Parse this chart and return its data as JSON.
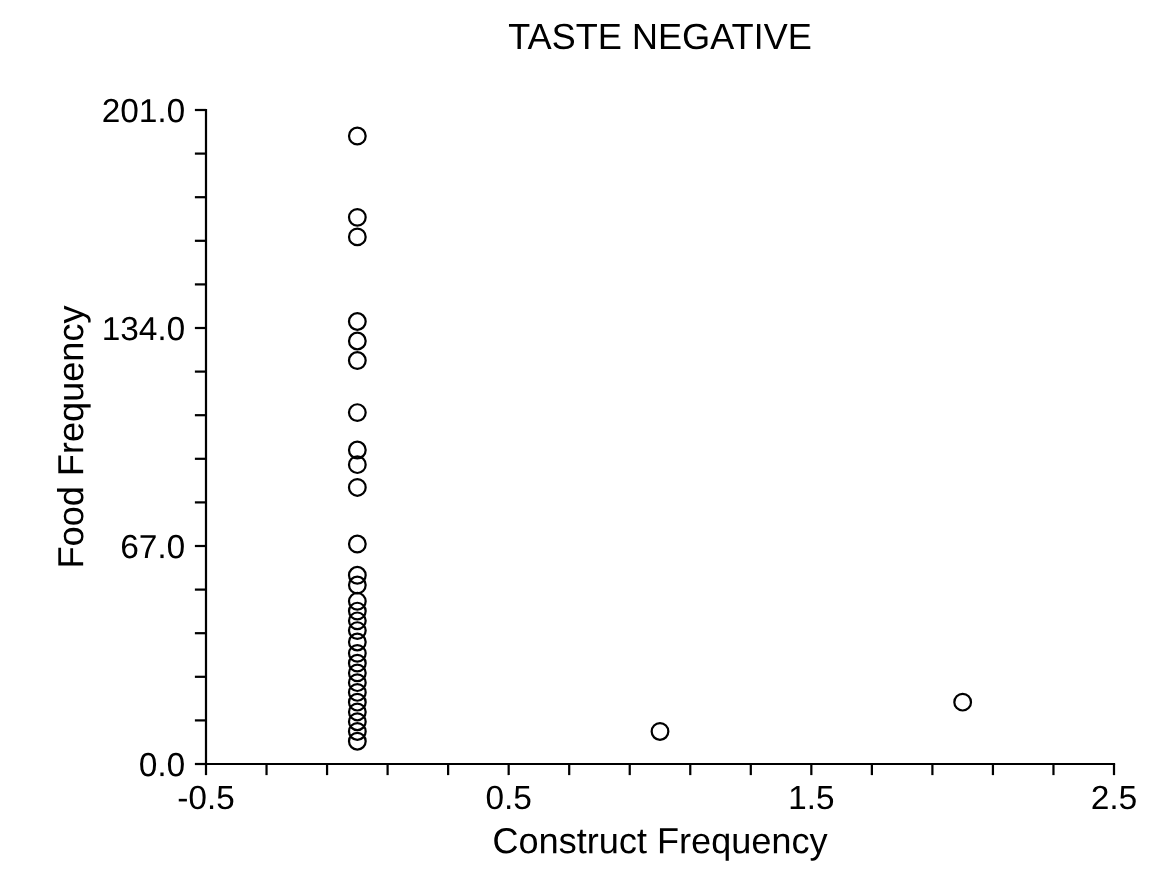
{
  "chart_data": {
    "type": "scatter",
    "title": "TASTE NEGATIVE",
    "xlabel": "Construct Frequency",
    "ylabel": "Food Frequency",
    "x": [
      0,
      0,
      0,
      0,
      0,
      0,
      0,
      0,
      0,
      0,
      0,
      0,
      0,
      0,
      0,
      0,
      0,
      0,
      0,
      0,
      0,
      0,
      0,
      0,
      0,
      0,
      0,
      0,
      1,
      2
    ],
    "values": [
      193,
      168,
      162,
      136,
      130,
      124,
      108,
      96.5,
      92,
      85,
      67.6,
      58,
      55,
      50,
      47,
      44,
      41,
      37.5,
      34,
      31,
      28,
      25,
      22,
      19,
      16,
      13,
      10,
      7,
      10,
      19
    ],
    "color": "#000000",
    "marker": "circle",
    "xlim": [
      -0.5,
      2.5
    ],
    "ylim": [
      0,
      201
    ],
    "xticks": [
      {
        "value": -0.5,
        "label": "-0.5"
      },
      {
        "value": -0.3,
        "label": null
      },
      {
        "value": -0.1,
        "label": null
      },
      {
        "value": 0.1,
        "label": null
      },
      {
        "value": 0.3,
        "label": null
      },
      {
        "value": 0.5,
        "label": "0.5"
      },
      {
        "value": 0.7,
        "label": null
      },
      {
        "value": 0.9,
        "label": null
      },
      {
        "value": 1.1,
        "label": null
      },
      {
        "value": 1.3,
        "label": null
      },
      {
        "value": 1.5,
        "label": "1.5"
      },
      {
        "value": 1.7,
        "label": null
      },
      {
        "value": 1.9,
        "label": null
      },
      {
        "value": 2.1,
        "label": null
      },
      {
        "value": 2.3,
        "label": null
      },
      {
        "value": 2.5,
        "label": "2.5"
      }
    ],
    "yticks": [
      {
        "value": 0,
        "label": "0.0"
      },
      {
        "value": 13.4,
        "label": null
      },
      {
        "value": 26.8,
        "label": null
      },
      {
        "value": 40.2,
        "label": null
      },
      {
        "value": 53.6,
        "label": null
      },
      {
        "value": 67,
        "label": "67.0"
      },
      {
        "value": 80.4,
        "label": null
      },
      {
        "value": 93.8,
        "label": null
      },
      {
        "value": 107.2,
        "label": null
      },
      {
        "value": 120.6,
        "label": null
      },
      {
        "value": 134,
        "label": "134.0"
      },
      {
        "value": 147.4,
        "label": null
      },
      {
        "value": 160.8,
        "label": null
      },
      {
        "value": 174.2,
        "label": null
      },
      {
        "value": 187.6,
        "label": null
      },
      {
        "value": 201,
        "label": "201.0"
      }
    ],
    "grid": false
  }
}
